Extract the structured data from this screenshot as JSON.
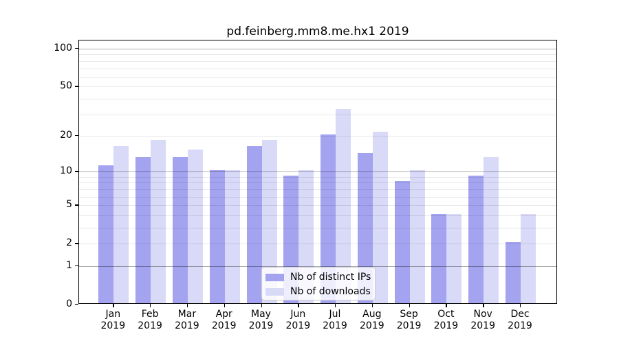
{
  "chart_data": {
    "type": "bar",
    "title": "pd.feinberg.mm8.me.hx1 2019",
    "categories": [
      "Jan",
      "Feb",
      "Mar",
      "Apr",
      "May",
      "Jun",
      "Jul",
      "Aug",
      "Sep",
      "Oct",
      "Nov",
      "Dec"
    ],
    "year_label": "2019",
    "series": [
      {
        "name": "Nb of distinct IPs",
        "color": "#a3a3f0",
        "values": [
          11,
          13,
          13,
          10,
          16,
          9,
          20,
          14,
          8,
          4,
          9,
          2
        ]
      },
      {
        "name": "Nb of downloads",
        "color": "#d9d9f8",
        "values": [
          16,
          18,
          15,
          10,
          18,
          10,
          32,
          21,
          10,
          4,
          13,
          4
        ]
      }
    ],
    "xlabel": "",
    "ylabel": "",
    "y_scale": "log1p",
    "ylim": [
      0,
      116
    ],
    "y_ticks": [
      0,
      1,
      2,
      5,
      10,
      20,
      50,
      100
    ],
    "y_major_gridlines": [
      1,
      10,
      100
    ],
    "y_minor_gridlines": [
      2,
      3,
      4,
      5,
      6,
      7,
      8,
      9,
      20,
      30,
      40,
      50,
      60,
      70,
      80,
      90
    ],
    "grid": true,
    "legend_position": "lower center-right inside plot"
  },
  "colors": {
    "bar_distinct_ips": "#a3a3f0",
    "bar_downloads": "#d9d9f8",
    "gridline_major": "#b0b0b0",
    "gridline_minor": "#e8e8e8",
    "axis": "#000000",
    "background": "#ffffff"
  }
}
